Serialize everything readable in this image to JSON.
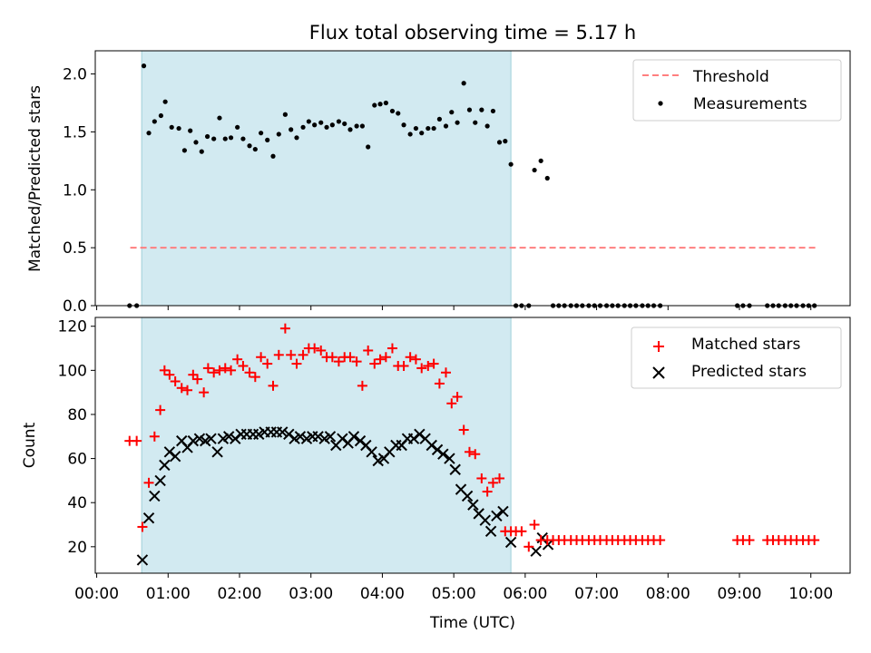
{
  "figure": {
    "title": "Flux total observing time = 5.17 h"
  },
  "chart_data": [
    {
      "type": "scatter",
      "panel": "top",
      "title": "Flux total observing time = 5.17 h",
      "xlabel": "",
      "ylabel": "Matched/Predicted stars",
      "xlim": [
        -0.02,
        10.55
      ],
      "ylim": [
        0,
        2.2
      ],
      "grid": false,
      "legend_position": "top-right",
      "x_ticks": [
        {
          "value": 0,
          "label": "00:00"
        },
        {
          "value": 1,
          "label": "01:00"
        },
        {
          "value": 2,
          "label": "02:00"
        },
        {
          "value": 3,
          "label": "03:00"
        },
        {
          "value": 4,
          "label": "04:00"
        },
        {
          "value": 5,
          "label": "05:00"
        },
        {
          "value": 6,
          "label": "06:00"
        },
        {
          "value": 7,
          "label": "07:00"
        },
        {
          "value": 8,
          "label": "08:00"
        },
        {
          "value": 9,
          "label": "09:00"
        },
        {
          "value": 10,
          "label": "10:00"
        }
      ],
      "y_ticks": [
        {
          "value": 0.0,
          "label": "0.0"
        },
        {
          "value": 0.5,
          "label": "0.5"
        },
        {
          "value": 1.0,
          "label": "1.0"
        },
        {
          "value": 1.5,
          "label": "1.5"
        },
        {
          "value": 2.0,
          "label": "2.0"
        }
      ],
      "shaded_span": {
        "x": [
          0.63,
          5.8
        ],
        "color": "#add8e6"
      },
      "threshold": {
        "name": "Threshold",
        "y": 0.5,
        "x": [
          0.47,
          10.1
        ],
        "color": "#ff7f7f"
      },
      "series": [
        {
          "name": "Measurements",
          "marker": "dot",
          "color": "#000000",
          "x": [
            0.46,
            0.56,
            0.66,
            0.73,
            0.81,
            0.9,
            0.96,
            1.05,
            1.15,
            1.23,
            1.31,
            1.39,
            1.47,
            1.55,
            1.64,
            1.72,
            1.8,
            1.88,
            1.97,
            2.05,
            2.14,
            2.22,
            2.3,
            2.39,
            2.47,
            2.55,
            2.64,
            2.72,
            2.8,
            2.89,
            2.97,
            3.05,
            3.14,
            3.22,
            3.3,
            3.39,
            3.47,
            3.55,
            3.64,
            3.72,
            3.8,
            3.89,
            3.97,
            4.05,
            4.14,
            4.22,
            4.3,
            4.39,
            4.47,
            4.55,
            4.64,
            4.72,
            4.8,
            4.89,
            4.97,
            5.05,
            5.14,
            5.22,
            5.3,
            5.39,
            5.47,
            5.55,
            5.64,
            5.72,
            5.8,
            5.87,
            5.95,
            6.05,
            6.13,
            6.22,
            6.31,
            6.39,
            6.47,
            6.55,
            6.64,
            6.72,
            6.8,
            6.89,
            6.97,
            7.05,
            7.14,
            7.22,
            7.3,
            7.39,
            7.47,
            7.55,
            7.64,
            7.72,
            7.8,
            7.89,
            8.97,
            9.05,
            9.14,
            9.39,
            9.47,
            9.55,
            9.64,
            9.72,
            9.8,
            9.89,
            9.97,
            10.05
          ],
          "y": [
            0.0,
            0.0,
            2.07,
            1.49,
            1.59,
            1.64,
            1.76,
            1.54,
            1.53,
            1.34,
            1.51,
            1.41,
            1.33,
            1.46,
            1.44,
            1.62,
            1.44,
            1.45,
            1.54,
            1.44,
            1.38,
            1.35,
            1.49,
            1.43,
            1.29,
            1.48,
            1.65,
            1.52,
            1.45,
            1.54,
            1.59,
            1.56,
            1.58,
            1.54,
            1.56,
            1.59,
            1.57,
            1.52,
            1.55,
            1.55,
            1.37,
            1.73,
            1.74,
            1.75,
            1.68,
            1.66,
            1.56,
            1.48,
            1.53,
            1.49,
            1.53,
            1.53,
            1.61,
            1.55,
            1.67,
            1.58,
            1.92,
            1.69,
            1.58,
            1.69,
            1.55,
            1.68,
            1.41,
            1.42,
            1.22,
            0.0,
            0.0,
            0.0,
            1.17,
            1.25,
            1.1,
            0.0,
            0.0,
            0.0,
            0.0,
            0.0,
            0.0,
            0.0,
            0.0,
            0.0,
            0.0,
            0.0,
            0.0,
            0.0,
            0.0,
            0.0,
            0.0,
            0.0,
            0.0,
            0.0,
            0.0,
            0.0,
            0.0,
            0.0,
            0.0,
            0.0,
            0.0,
            0.0,
            0.0,
            0.0,
            0.0,
            0.0
          ]
        }
      ]
    },
    {
      "type": "scatter",
      "panel": "bottom",
      "xlabel": "Time (UTC)",
      "ylabel": "Count",
      "xlim": [
        -0.02,
        10.55
      ],
      "ylim": [
        8,
        124
      ],
      "grid": false,
      "legend_position": "top-right",
      "x_ticks": [
        {
          "value": 0,
          "label": "00:00"
        },
        {
          "value": 1,
          "label": "01:00"
        },
        {
          "value": 2,
          "label": "02:00"
        },
        {
          "value": 3,
          "label": "03:00"
        },
        {
          "value": 4,
          "label": "04:00"
        },
        {
          "value": 5,
          "label": "05:00"
        },
        {
          "value": 6,
          "label": "06:00"
        },
        {
          "value": 7,
          "label": "07:00"
        },
        {
          "value": 8,
          "label": "08:00"
        },
        {
          "value": 9,
          "label": "09:00"
        },
        {
          "value": 10,
          "label": "10:00"
        }
      ],
      "y_ticks": [
        {
          "value": 20,
          "label": "20"
        },
        {
          "value": 40,
          "label": "40"
        },
        {
          "value": 60,
          "label": "60"
        },
        {
          "value": 80,
          "label": "80"
        },
        {
          "value": 100,
          "label": "100"
        },
        {
          "value": 120,
          "label": "120"
        }
      ],
      "shaded_span": {
        "x": [
          0.63,
          5.8
        ],
        "color": "#add8e6"
      },
      "series": [
        {
          "name": "Matched stars",
          "marker": "plus",
          "color": "#ff0000",
          "x": [
            0.46,
            0.56,
            0.64,
            0.73,
            0.81,
            0.89,
            0.95,
            1.02,
            1.1,
            1.19,
            1.27,
            1.35,
            1.41,
            1.5,
            1.56,
            1.64,
            1.72,
            1.8,
            1.88,
            1.97,
            2.05,
            2.14,
            2.22,
            2.3,
            2.39,
            2.47,
            2.55,
            2.64,
            2.72,
            2.8,
            2.89,
            2.97,
            3.05,
            3.14,
            3.22,
            3.3,
            3.39,
            3.47,
            3.55,
            3.64,
            3.72,
            3.8,
            3.89,
            3.97,
            4.05,
            4.14,
            4.22,
            4.3,
            4.39,
            4.47,
            4.55,
            4.64,
            4.72,
            4.8,
            4.89,
            4.97,
            5.05,
            5.14,
            5.22,
            5.3,
            5.39,
            5.47,
            5.55,
            5.64,
            5.72,
            5.8,
            5.87,
            5.95,
            6.05,
            6.13,
            6.22,
            6.31,
            6.39,
            6.47,
            6.55,
            6.64,
            6.72,
            6.8,
            6.89,
            6.97,
            7.05,
            7.14,
            7.22,
            7.3,
            7.39,
            7.47,
            7.55,
            7.64,
            7.72,
            7.8,
            7.89,
            8.97,
            9.05,
            9.14,
            9.39,
            9.47,
            9.55,
            9.64,
            9.72,
            9.8,
            9.89,
            9.97,
            10.05
          ],
          "y": [
            68,
            68,
            29,
            49,
            70,
            82,
            100,
            98,
            95,
            92,
            91,
            98,
            96,
            90,
            101,
            99,
            100,
            101,
            100,
            105,
            102,
            99,
            97,
            106,
            103,
            93,
            107,
            119,
            107,
            103,
            107,
            110,
            110,
            109,
            106,
            106,
            104,
            106,
            106,
            104,
            93,
            109,
            103,
            105,
            106,
            110,
            102,
            102,
            106,
            105,
            101,
            102,
            103,
            94,
            99,
            85,
            88,
            73,
            63,
            62,
            51,
            45,
            49,
            51,
            27,
            27,
            27,
            27,
            20,
            30,
            23,
            23,
            23,
            23,
            23,
            23,
            23,
            23,
            23,
            23,
            23,
            23,
            23,
            23,
            23,
            23,
            23,
            23,
            23,
            23,
            23,
            23,
            23,
            23,
            23,
            23,
            23,
            23,
            23,
            23,
            23,
            23,
            23
          ]
        },
        {
          "name": "Predicted stars",
          "marker": "x",
          "color": "#000000",
          "x": [
            0.64,
            0.73,
            0.81,
            0.89,
            0.95,
            1.02,
            1.1,
            1.19,
            1.27,
            1.35,
            1.44,
            1.52,
            1.6,
            1.69,
            1.77,
            1.85,
            1.94,
            2.02,
            2.1,
            2.19,
            2.27,
            2.35,
            2.44,
            2.52,
            2.6,
            2.69,
            2.77,
            2.85,
            2.94,
            3.02,
            3.1,
            3.19,
            3.27,
            3.35,
            3.44,
            3.52,
            3.6,
            3.69,
            3.77,
            3.85,
            3.94,
            4.02,
            4.1,
            4.19,
            4.27,
            4.35,
            4.44,
            4.52,
            4.6,
            4.69,
            4.77,
            4.85,
            4.94,
            5.02,
            5.1,
            5.19,
            5.27,
            5.35,
            5.44,
            5.52,
            5.6,
            5.69,
            5.8,
            6.15,
            6.24,
            6.32
          ],
          "y": [
            14,
            33,
            43,
            50,
            57,
            63,
            61,
            68,
            65,
            68,
            69,
            68,
            69,
            63,
            69,
            70,
            69,
            71,
            71,
            71,
            71,
            72,
            72,
            72,
            72,
            71,
            69,
            70,
            69,
            70,
            70,
            69,
            70,
            66,
            69,
            67,
            70,
            68,
            66,
            63,
            59,
            60,
            63,
            66,
            66,
            69,
            69,
            71,
            69,
            66,
            64,
            62,
            60,
            55,
            46,
            43,
            39,
            35,
            32,
            27,
            34,
            36,
            22,
            18,
            24,
            21
          ]
        }
      ]
    }
  ]
}
